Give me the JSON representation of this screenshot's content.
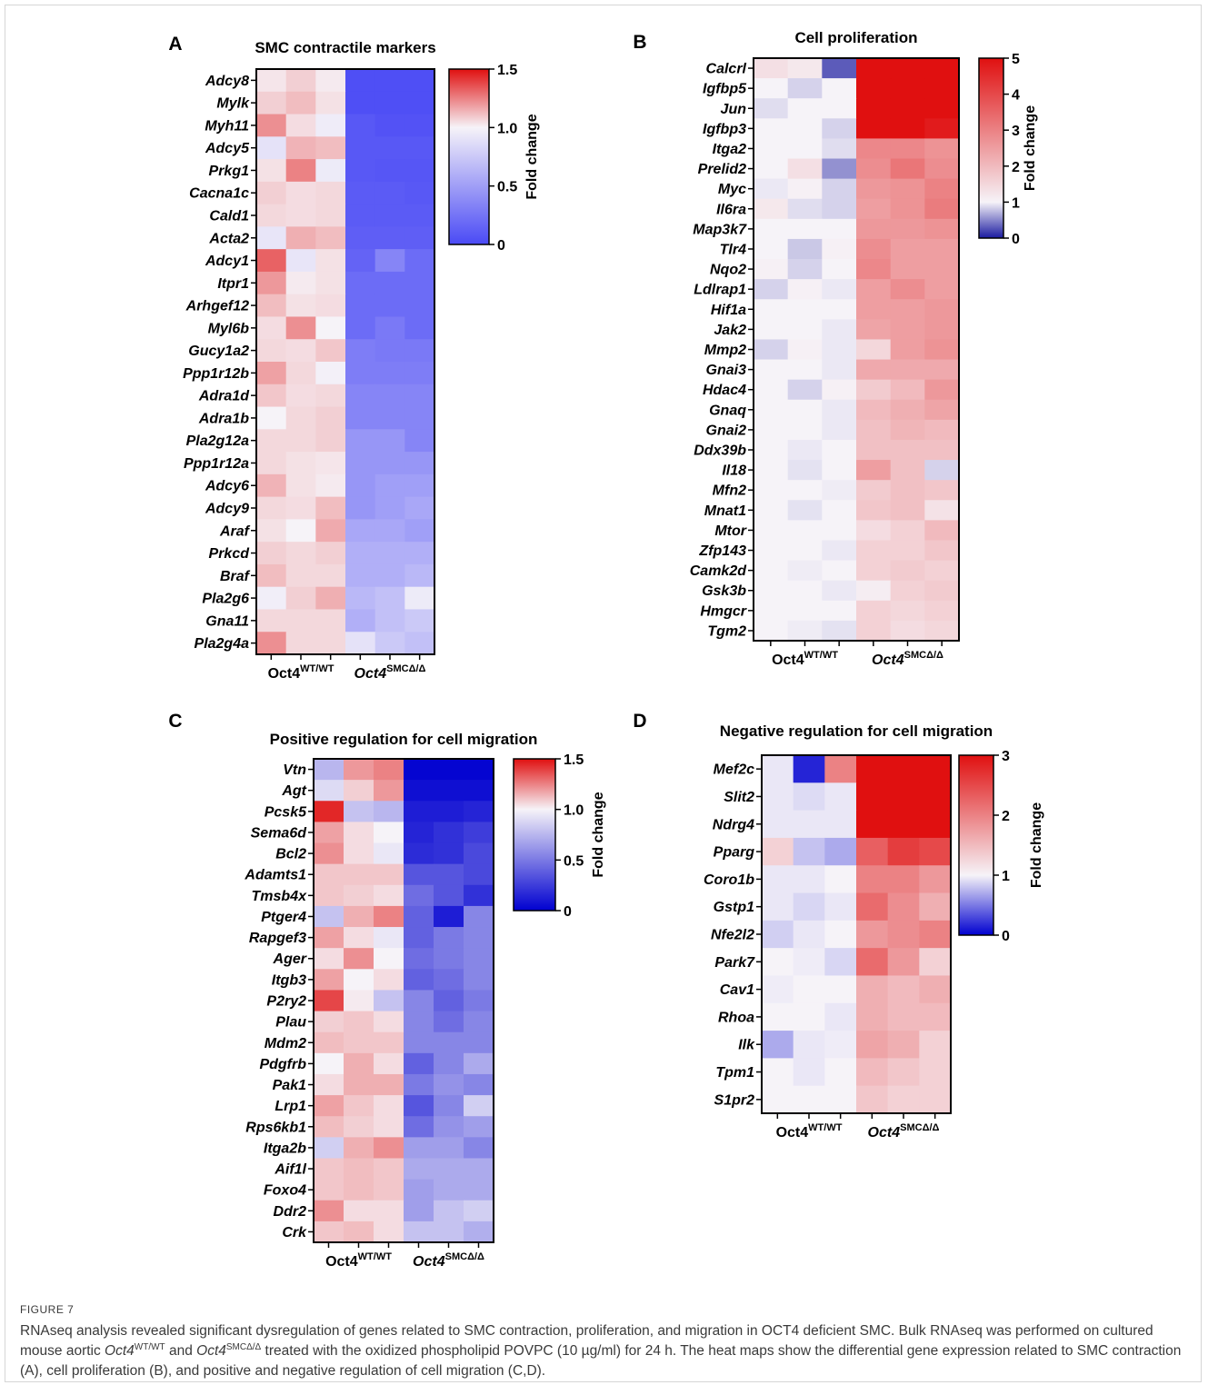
{
  "figure_label": "FIGURE 7",
  "caption": {
    "part1": "RNAseq analysis revealed significant dysregulation of genes related to SMC contraction, proliferation, and migration in OCT4 deficient SMC. Bulk RNAseq was performed on cultured mouse aortic ",
    "wt_name": "Oct4",
    "wt_sup": "WT/WT",
    "and": " and ",
    "ko_name": "Oct4",
    "ko_sup": "SMCΔ/Δ",
    "part2": " treated with the oxidized phospholipid POVPC (10 µg/ml) for 24 h. The heat maps show the differential gene expression related to SMC contraction (",
    "refA": "A",
    "part3": "), cell proliferation (",
    "refB": "B",
    "part4": "), and positive and negative regulation of cell migration (",
    "refCD": "C,D",
    "part5": ")."
  },
  "colors": {
    "low": "#0000d0",
    "mid": "#f6f3f8",
    "high": "#e01010"
  },
  "chart_data": [
    {
      "type": "heatmap",
      "panel_letter": "A",
      "title": "SMC contractile markers",
      "groups": [
        {
          "name": "Oct4",
          "sup": "WT/WT",
          "italic": false
        },
        {
          "name": "Oct4",
          "sup": "SMCΔ/Δ",
          "italic": true
        }
      ],
      "colorbar": {
        "title": "Fold change",
        "min": 0,
        "mid": 1,
        "max": 1.5,
        "ticks": [
          "0",
          "0.5",
          "1.0",
          "1.5"
        ],
        "tick_values": [
          0,
          0.5,
          1.0,
          1.5
        ],
        "low_color": "#4a4af5"
      },
      "genes": [
        "Adcy8",
        "Mylk",
        "Myh11",
        "Adcy5",
        "Prkg1",
        "Cacna1c",
        "Cald1",
        "Acta2",
        "Adcy1",
        "Itpr1",
        "Arhgef12",
        "Myl6b",
        "Gucy1a2",
        "Ppp1r12b",
        "Adra1d",
        "Adra1b",
        "Pla2g12a",
        "Ppp1r12a",
        "Adcy6",
        "Adcy9",
        "Araf",
        "Prkcd",
        "Braf",
        "Pla2g6",
        "Gna11",
        "Pla2g4a"
      ],
      "values": [
        [
          1.03,
          1.08,
          1.02,
          0.03,
          0.03,
          0.03
        ],
        [
          1.08,
          1.12,
          1.04,
          0.03,
          0.03,
          0.03
        ],
        [
          1.22,
          1.05,
          0.96,
          0.08,
          0.05,
          0.05
        ],
        [
          0.9,
          1.14,
          1.12,
          0.08,
          0.08,
          0.08
        ],
        [
          1.04,
          1.25,
          0.95,
          0.08,
          0.07,
          0.07
        ],
        [
          1.08,
          1.05,
          1.06,
          0.1,
          0.1,
          0.08
        ],
        [
          1.06,
          1.05,
          1.06,
          0.1,
          0.1,
          0.1
        ],
        [
          0.92,
          1.15,
          1.12,
          0.12,
          0.12,
          0.12
        ],
        [
          1.32,
          0.92,
          1.04,
          0.15,
          0.35,
          0.2
        ],
        [
          1.2,
          1.02,
          1.04,
          0.2,
          0.2,
          0.2
        ],
        [
          1.12,
          1.04,
          1.05,
          0.2,
          0.2,
          0.2
        ],
        [
          1.05,
          1.22,
          1.0,
          0.2,
          0.28,
          0.2
        ],
        [
          1.06,
          1.05,
          1.1,
          0.3,
          0.28,
          0.28
        ],
        [
          1.18,
          1.06,
          0.98,
          0.3,
          0.3,
          0.3
        ],
        [
          1.1,
          1.05,
          1.06,
          0.35,
          0.35,
          0.35
        ],
        [
          1.0,
          1.06,
          1.08,
          0.35,
          0.35,
          0.35
        ],
        [
          1.06,
          1.06,
          1.08,
          0.45,
          0.45,
          0.35
        ],
        [
          1.06,
          1.04,
          1.03,
          0.45,
          0.45,
          0.45
        ],
        [
          1.14,
          1.04,
          1.02,
          0.45,
          0.5,
          0.5
        ],
        [
          1.06,
          1.05,
          1.12,
          0.45,
          0.5,
          0.55
        ],
        [
          1.04,
          1.0,
          1.16,
          0.55,
          0.55,
          0.5
        ],
        [
          1.08,
          1.06,
          1.08,
          0.6,
          0.6,
          0.6
        ],
        [
          1.12,
          1.06,
          1.06,
          0.6,
          0.6,
          0.65
        ],
        [
          0.97,
          1.08,
          1.15,
          0.65,
          0.7,
          0.95
        ],
        [
          1.06,
          1.06,
          1.06,
          0.6,
          0.7,
          0.75
        ],
        [
          1.22,
          1.06,
          1.06,
          0.9,
          0.75,
          0.7
        ]
      ]
    },
    {
      "type": "heatmap",
      "panel_letter": "B",
      "title": "Cell proliferation",
      "groups": [
        {
          "name": "Oct4",
          "sup": "WT/WT",
          "italic": false
        },
        {
          "name": "Oct4",
          "sup": "SMCΔ/Δ",
          "italic": true
        }
      ],
      "colorbar": {
        "title": "Fold change",
        "min": 0,
        "mid": 1,
        "max": 5,
        "ticks": [
          "0",
          "1",
          "2",
          "3",
          "4",
          "5"
        ],
        "tick_values": [
          0,
          1,
          2,
          3,
          4,
          5
        ],
        "low_color": "#1a1aa0"
      },
      "genes": [
        "Calcrl",
        "Igfbp5",
        "Jun",
        "Igfbp3",
        "Itga2",
        "Prelid2",
        "Myc",
        "Il6ra",
        "Map3k7",
        "Tlr4",
        "Nqo2",
        "Ldlrap1",
        "Hif1a",
        "Jak2",
        "Mmp2",
        "Gnai3",
        "Hdac4",
        "Gnaq",
        "Gnai2",
        "Ddx39b",
        "Il18",
        "Mfn2",
        "Mnat1",
        "Mtor",
        "Zfp143",
        "Camk2d",
        "Gsk3b",
        "Hmgcr",
        "Tgm2"
      ],
      "values": [
        [
          1.35,
          1.2,
          0.3,
          5,
          5,
          5
        ],
        [
          1.0,
          0.85,
          1.0,
          5,
          5,
          5
        ],
        [
          0.9,
          1.0,
          1.0,
          5,
          5,
          5
        ],
        [
          1.0,
          1.0,
          0.85,
          5,
          5,
          4.8
        ],
        [
          1.0,
          1.0,
          0.9,
          2.9,
          2.9,
          2.7
        ],
        [
          1.0,
          1.35,
          0.55,
          2.8,
          3.2,
          2.8
        ],
        [
          0.95,
          1.05,
          0.85,
          2.6,
          2.7,
          3.0
        ],
        [
          1.2,
          0.9,
          0.85,
          2.5,
          2.7,
          3.1
        ],
        [
          1.0,
          1.0,
          1.0,
          2.6,
          2.6,
          2.7
        ],
        [
          1.0,
          0.8,
          1.05,
          2.8,
          2.5,
          2.5
        ],
        [
          1.05,
          0.85,
          1.0,
          2.9,
          2.5,
          2.5
        ],
        [
          0.85,
          1.05,
          0.95,
          2.5,
          2.8,
          2.5
        ],
        [
          1.0,
          1.0,
          1.0,
          2.5,
          2.5,
          2.6
        ],
        [
          1.0,
          1.0,
          0.95,
          2.4,
          2.5,
          2.6
        ],
        [
          0.85,
          1.05,
          0.95,
          1.5,
          2.5,
          2.7
        ],
        [
          1.0,
          1.0,
          0.95,
          2.3,
          2.3,
          2.3
        ],
        [
          1.0,
          0.85,
          1.05,
          1.7,
          2.0,
          2.6
        ],
        [
          1.0,
          1.0,
          0.95,
          2.0,
          2.2,
          2.4
        ],
        [
          1.0,
          1.0,
          0.95,
          1.9,
          2.1,
          2.0
        ],
        [
          1.0,
          0.95,
          1.0,
          1.9,
          1.9,
          1.9
        ],
        [
          1.0,
          0.92,
          1.0,
          2.5,
          1.9,
          0.85
        ],
        [
          1.0,
          1.0,
          0.97,
          1.7,
          1.9,
          1.8
        ],
        [
          1.0,
          0.92,
          1.0,
          1.8,
          1.9,
          1.3
        ],
        [
          1.0,
          1.0,
          1.0,
          1.4,
          1.6,
          2.0
        ],
        [
          1.0,
          1.0,
          0.95,
          1.6,
          1.6,
          1.8
        ],
        [
          1.0,
          0.97,
          1.0,
          1.6,
          1.7,
          1.6
        ],
        [
          1.0,
          1.0,
          0.95,
          1.1,
          1.6,
          1.7
        ],
        [
          1.0,
          1.0,
          1.0,
          1.6,
          1.5,
          1.6
        ],
        [
          1.0,
          0.97,
          0.92,
          1.6,
          1.4,
          1.5
        ]
      ]
    },
    {
      "type": "heatmap",
      "panel_letter": "C",
      "title": "Positive regulation for cell migration",
      "groups": [
        {
          "name": "Oct4",
          "sup": "WT/WT",
          "italic": false
        },
        {
          "name": "Oct4",
          "sup": "SMCΔ/Δ",
          "italic": true
        }
      ],
      "colorbar": {
        "title": "Fold change",
        "min": 0,
        "mid": 1,
        "max": 1.5,
        "ticks": [
          "0",
          "0.5",
          "1.0",
          "1.5"
        ],
        "tick_values": [
          0,
          0.5,
          1.0,
          1.5
        ],
        "low_color": "#0000d0"
      },
      "genes": [
        "Vtn",
        "Agt",
        "Pcsk5",
        "Sema6d",
        "Bcl2",
        "Adamts1",
        "Tmsb4x",
        "Ptger4",
        "Rapgef3",
        "Ager",
        "Itgb3",
        "P2ry2",
        "Plau",
        "Mdm2",
        "Pdgfrb",
        "Pak1",
        "Lrp1",
        "Rps6kb1",
        "Itga2b",
        "Aif1l",
        "Foxo4",
        "Ddr2",
        "Crk"
      ],
      "values": [
        [
          0.75,
          1.2,
          1.25,
          0.02,
          0.02,
          0.02
        ],
        [
          0.9,
          1.08,
          1.2,
          0.06,
          0.06,
          0.06
        ],
        [
          1.45,
          0.8,
          0.75,
          0.12,
          0.12,
          0.15
        ],
        [
          1.18,
          1.05,
          1.0,
          0.15,
          0.2,
          0.25
        ],
        [
          1.22,
          1.05,
          0.95,
          0.18,
          0.2,
          0.3
        ],
        [
          1.1,
          1.1,
          1.1,
          0.35,
          0.35,
          0.3
        ],
        [
          1.1,
          1.08,
          1.05,
          0.45,
          0.35,
          0.2
        ],
        [
          0.8,
          1.15,
          1.25,
          0.4,
          0.12,
          0.55
        ],
        [
          1.18,
          1.05,
          0.95,
          0.4,
          0.5,
          0.55
        ],
        [
          1.05,
          1.22,
          1.0,
          0.45,
          0.5,
          0.55
        ],
        [
          1.18,
          1.0,
          1.05,
          0.4,
          0.45,
          0.55
        ],
        [
          1.38,
          1.02,
          0.8,
          0.55,
          0.4,
          0.5
        ],
        [
          1.08,
          1.1,
          1.05,
          0.55,
          0.45,
          0.55
        ],
        [
          1.12,
          1.1,
          1.1,
          0.55,
          0.55,
          0.55
        ],
        [
          1.0,
          1.15,
          1.05,
          0.4,
          0.55,
          0.7
        ],
        [
          1.05,
          1.15,
          1.15,
          0.5,
          0.6,
          0.55
        ],
        [
          1.18,
          1.1,
          1.05,
          0.35,
          0.55,
          0.85
        ],
        [
          1.12,
          1.08,
          1.05,
          0.45,
          0.6,
          0.65
        ],
        [
          0.85,
          1.15,
          1.22,
          0.65,
          0.65,
          0.55
        ],
        [
          1.1,
          1.12,
          1.1,
          0.7,
          0.7,
          0.7
        ],
        [
          1.1,
          1.12,
          1.1,
          0.65,
          0.7,
          0.7
        ],
        [
          1.22,
          1.05,
          1.05,
          0.65,
          0.8,
          0.85
        ],
        [
          1.1,
          1.12,
          1.05,
          0.8,
          0.8,
          0.72
        ]
      ]
    },
    {
      "type": "heatmap",
      "panel_letter": "D",
      "title": "Negative regulation for cell migration",
      "groups": [
        {
          "name": "Oct4",
          "sup": "WT/WT",
          "italic": false
        },
        {
          "name": "Oct4",
          "sup": "SMCΔ/Δ",
          "italic": true
        }
      ],
      "colorbar": {
        "title": "Fold change",
        "min": 0,
        "mid": 1,
        "max": 3,
        "ticks": [
          "0",
          "1",
          "2",
          "3"
        ],
        "tick_values": [
          0,
          1,
          2,
          3
        ],
        "low_color": "#0000d0"
      },
      "genes": [
        "Mef2c",
        "Slit2",
        "Ndrg4",
        "Pparg",
        "Coro1b",
        "Gstp1",
        "Nfe2l2",
        "Park7",
        "Cav1",
        "Rhoa",
        "Ilk",
        "Tpm1",
        "S1pr2"
      ],
      "values": [
        [
          0.95,
          0.15,
          2.0,
          3,
          3,
          3
        ],
        [
          0.95,
          0.9,
          0.95,
          3,
          3,
          3
        ],
        [
          0.95,
          0.95,
          0.95,
          3,
          3,
          3
        ],
        [
          1.3,
          0.8,
          0.7,
          2.3,
          2.6,
          2.5
        ],
        [
          0.95,
          0.95,
          1.0,
          2.0,
          2.0,
          1.8
        ],
        [
          0.95,
          0.88,
          0.95,
          2.2,
          1.9,
          1.6
        ],
        [
          0.85,
          0.95,
          1.0,
          1.8,
          1.9,
          2.0
        ],
        [
          1.0,
          0.97,
          0.88,
          2.2,
          1.8,
          1.3
        ],
        [
          0.97,
          1.0,
          1.0,
          1.6,
          1.5,
          1.6
        ],
        [
          1.0,
          1.0,
          0.95,
          1.6,
          1.5,
          1.5
        ],
        [
          0.7,
          0.95,
          0.97,
          1.7,
          1.6,
          1.3
        ],
        [
          1.0,
          0.95,
          1.0,
          1.5,
          1.4,
          1.3
        ],
        [
          1.0,
          1.0,
          1.0,
          1.4,
          1.3,
          1.3
        ]
      ]
    }
  ]
}
